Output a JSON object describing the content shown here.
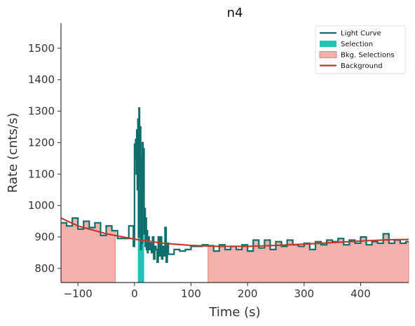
{
  "chart_data": {
    "type": "line",
    "title": "n4",
    "xlabel": "Time (s)",
    "ylabel": "Rate (cnts/s)",
    "xlim": [
      -130,
      485
    ],
    "ylim": [
      755,
      1580
    ],
    "x_ticks": [
      -100,
      0,
      100,
      200,
      300,
      400
    ],
    "x_tick_labels": [
      "−100",
      "0",
      "100",
      "200",
      "300",
      "400"
    ],
    "y_ticks": [
      800,
      900,
      1000,
      1100,
      1200,
      1300,
      1400,
      1500
    ],
    "y_tick_labels": [
      "800",
      "900",
      "1000",
      "1100",
      "1200",
      "1300",
      "1400",
      "1500"
    ],
    "grid": false,
    "legend_position": "top-right",
    "legend": [
      {
        "label": "Light Curve",
        "kind": "line",
        "color": "#0e6e6b"
      },
      {
        "label": "Selection",
        "kind": "patch",
        "color": "#22c2b8"
      },
      {
        "label": "Bkg. Selections",
        "kind": "patch",
        "color": "#f2b1aa",
        "edge": "#e8857a"
      },
      {
        "label": "Background",
        "kind": "line",
        "color": "#c0392b"
      }
    ],
    "colors": {
      "light_curve": "#0e6e6b",
      "selection": "#22c2b8",
      "bkg_fill": "#f2b1aa",
      "bkg_edge": "#e8857a",
      "background": "#c0392b"
    },
    "selection": [
      6,
      17
    ],
    "bkg_selections": [
      [
        -130,
        -34
      ],
      [
        130,
        485
      ]
    ],
    "background_model": {
      "x": [
        -130,
        -100,
        -50,
        0,
        50,
        100,
        150,
        200,
        250,
        300,
        350,
        400,
        450,
        485
      ],
      "y": [
        960,
        935,
        910,
        893,
        880,
        873,
        870,
        870,
        873,
        877,
        882,
        887,
        891,
        892
      ]
    },
    "light_curve": {
      "x": [
        -130,
        -120,
        -110,
        -100,
        -90,
        -80,
        -70,
        -60,
        -50,
        -40,
        -30,
        -20,
        -10,
        -2,
        0,
        1,
        2,
        3,
        4,
        5,
        6,
        7,
        8,
        9,
        10,
        11,
        12,
        13,
        14,
        15,
        16,
        17,
        18,
        19,
        20,
        21,
        22,
        23,
        24,
        26,
        28,
        30,
        32,
        34,
        36,
        38,
        40,
        42,
        44,
        46,
        48,
        50,
        52,
        54,
        56,
        58,
        60,
        70,
        80,
        90,
        100,
        110,
        120,
        130,
        140,
        150,
        160,
        170,
        180,
        190,
        200,
        210,
        220,
        230,
        240,
        250,
        260,
        270,
        280,
        290,
        300,
        310,
        320,
        330,
        340,
        350,
        360,
        370,
        380,
        390,
        400,
        410,
        420,
        430,
        440,
        450,
        460,
        470,
        480
      ],
      "y": [
        945,
        935,
        960,
        925,
        950,
        930,
        945,
        905,
        935,
        920,
        895,
        895,
        935,
        870,
        1195,
        1150,
        1210,
        1100,
        1240,
        1050,
        1275,
        900,
        1310,
        1080,
        1250,
        860,
        1150,
        880,
        1200,
        1040,
        1180,
        910,
        990,
        870,
        960,
        860,
        920,
        850,
        900,
        860,
        880,
        850,
        900,
        830,
        870,
        860,
        820,
        900,
        840,
        900,
        830,
        870,
        840,
        930,
        820,
        880,
        845,
        860,
        855,
        860,
        870,
        870,
        875,
        872,
        855,
        875,
        860,
        870,
        860,
        875,
        855,
        890,
        865,
        890,
        860,
        885,
        870,
        890,
        875,
        870,
        880,
        860,
        885,
        875,
        890,
        885,
        895,
        875,
        890,
        880,
        900,
        875,
        885,
        880,
        910,
        880,
        890,
        880,
        885
      ]
    }
  }
}
